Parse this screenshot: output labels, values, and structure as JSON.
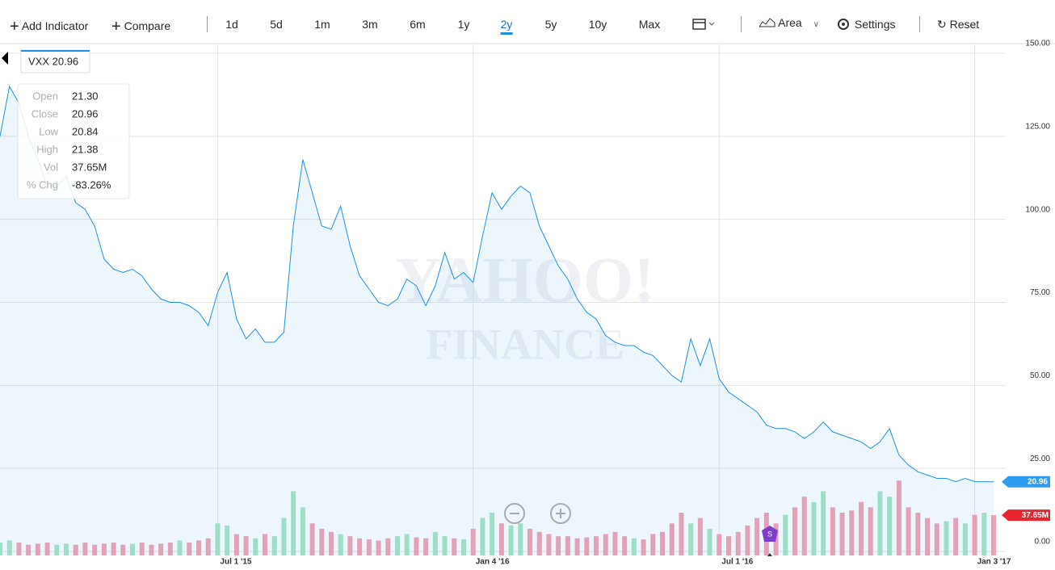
{
  "toolbar": {
    "add_indicator": "Add Indicator",
    "compare": "Compare",
    "ranges": [
      "1d",
      "5d",
      "1m",
      "3m",
      "6m",
      "1y",
      "2y",
      "5y",
      "10y",
      "Max"
    ],
    "chart_type": "Area",
    "settings": "Settings",
    "reset": "Reset"
  },
  "tooltip": {
    "title": "VXX 20.96",
    "rows": [
      [
        "Open",
        "21.30"
      ],
      [
        "Close",
        "20.96"
      ],
      [
        "Low",
        "20.84"
      ],
      [
        "High",
        "21.38"
      ],
      [
        "Vol",
        "37.65M"
      ],
      [
        "% Chg",
        "-83.26%"
      ]
    ]
  },
  "watermark": [
    "YAHOO!",
    "FINANCE"
  ],
  "event_marker": "S",
  "chart_data": {
    "type": "area",
    "categories": [
      null,
      null,
      null,
      null,
      null,
      null,
      null,
      null,
      null,
      null,
      null,
      null,
      null,
      null,
      null,
      null,
      null,
      null,
      null,
      null,
      null,
      null,
      null,
      "Jul 1 '15",
      null,
      null,
      null,
      null,
      null,
      null,
      null,
      null,
      null,
      null,
      null,
      null,
      null,
      null,
      null,
      null,
      null,
      null,
      null,
      null,
      null,
      null,
      null,
      null,
      null,
      null,
      "Jan 4 '16",
      null,
      null,
      null,
      null,
      null,
      null,
      null,
      null,
      null,
      null,
      null,
      null,
      null,
      null,
      null,
      null,
      null,
      null,
      null,
      null,
      null,
      null,
      null,
      null,
      null,
      "Jul 1 '16",
      null,
      null,
      null,
      null,
      null,
      null,
      null,
      null,
      null,
      null,
      null,
      null,
      null,
      null,
      null,
      null,
      null,
      null,
      null,
      null,
      null,
      null,
      null,
      null,
      null,
      null,
      "Jan 3 '17",
      null,
      null
    ],
    "series": [
      {
        "name": "VXX",
        "color": "#1e90e6",
        "values": [
          125,
          140,
          135,
          125,
          118,
          110,
          110,
          113,
          105,
          103,
          98,
          88,
          85,
          84,
          85,
          83,
          79,
          76,
          75,
          75,
          74,
          72,
          68,
          78,
          84,
          70,
          64,
          67,
          63,
          63,
          66,
          98,
          118,
          108,
          98,
          97,
          104,
          92,
          83,
          79,
          75,
          74,
          76,
          82,
          80,
          74,
          80,
          90,
          82,
          84,
          81,
          95,
          108,
          103,
          107,
          110,
          108,
          98,
          92,
          86,
          82,
          76,
          72,
          70,
          65,
          63,
          62,
          62,
          60,
          59,
          56,
          53,
          51,
          64,
          56,
          64,
          52,
          48,
          46,
          44,
          42,
          38,
          37,
          37,
          36,
          34,
          36,
          39,
          36,
          35,
          34,
          33,
          31,
          33,
          37,
          29,
          26,
          24,
          23,
          22,
          22,
          21,
          22,
          21,
          21,
          20.96
        ]
      }
    ],
    "volume": {
      "up_color": "#a8e6c4",
      "down_color": "#f4a3b3",
      "values": [
        12,
        14,
        12,
        10,
        11,
        12,
        10,
        11,
        10,
        12,
        10,
        11,
        12,
        10,
        11,
        12,
        10,
        11,
        12,
        14,
        12,
        14,
        16,
        30,
        28,
        20,
        18,
        16,
        20,
        18,
        35,
        60,
        45,
        30,
        25,
        22,
        20,
        18,
        16,
        15,
        14,
        16,
        18,
        20,
        17,
        16,
        22,
        18,
        16,
        15,
        25,
        35,
        40,
        30,
        28,
        30,
        25,
        22,
        20,
        18,
        18,
        16,
        17,
        18,
        20,
        22,
        18,
        16,
        15,
        20,
        22,
        30,
        40,
        30,
        35,
        25,
        20,
        18,
        22,
        28,
        35,
        40,
        30,
        38,
        45,
        55,
        50,
        60,
        45,
        40,
        42,
        50,
        45,
        60,
        55,
        70,
        45,
        40,
        35,
        30,
        32,
        35,
        30,
        38,
        40,
        37.65
      ],
      "ylim": [
        0,
        80
      ]
    },
    "ylim": [
      0,
      150
    ],
    "yticks": [
      {
        "value": 0,
        "label": "0.00"
      },
      {
        "value": 25,
        "label": "25.00"
      },
      {
        "value": 50,
        "label": "50.00"
      },
      {
        "value": 75,
        "label": "75.00"
      },
      {
        "value": 100,
        "label": "100.00"
      },
      {
        "value": 125,
        "label": "125.00"
      },
      {
        "value": 150,
        "label": "150.00"
      }
    ],
    "last_price_label": "20.96",
    "last_volume_label": "37.65M",
    "grid": true
  }
}
